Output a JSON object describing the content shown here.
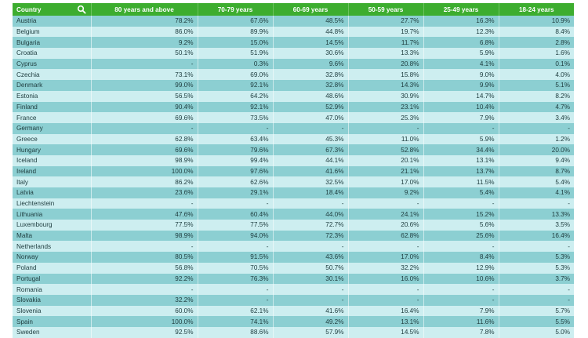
{
  "table": {
    "columns": [
      "Country",
      "80 years and above",
      "70-79 years",
      "60-69 years",
      "50-59 years",
      "25-49 years",
      "18-24 years"
    ],
    "rows": [
      [
        "Austria",
        "78.2%",
        "67.6%",
        "48.5%",
        "27.7%",
        "16.3%",
        "10.9%"
      ],
      [
        "Belgium",
        "86.0%",
        "89.9%",
        "44.8%",
        "19.7%",
        "12.3%",
        "8.4%"
      ],
      [
        "Bulgaria",
        "9.2%",
        "15.0%",
        "14.5%",
        "11.7%",
        "6.8%",
        "2.8%"
      ],
      [
        "Croatia",
        "50.1%",
        "51.9%",
        "30.6%",
        "13.3%",
        "5.9%",
        "1.6%"
      ],
      [
        "Cyprus",
        "-",
        "0.3%",
        "9.6%",
        "20.8%",
        "4.1%",
        "0.1%"
      ],
      [
        "Czechia",
        "73.1%",
        "69.0%",
        "32.8%",
        "15.8%",
        "9.0%",
        "4.0%"
      ],
      [
        "Denmark",
        "99.0%",
        "92.1%",
        "32.8%",
        "14.3%",
        "9.9%",
        "5.1%"
      ],
      [
        "Estonia",
        "56.5%",
        "64.2%",
        "48.6%",
        "30.9%",
        "14.7%",
        "8.2%"
      ],
      [
        "Finland",
        "90.4%",
        "92.1%",
        "52.9%",
        "23.1%",
        "10.4%",
        "4.7%"
      ],
      [
        "France",
        "69.6%",
        "73.5%",
        "47.0%",
        "25.3%",
        "7.9%",
        "3.4%"
      ],
      [
        "Germany",
        "-",
        "-",
        "-",
        "-",
        "-",
        "-"
      ],
      [
        "Greece",
        "62.8%",
        "63.4%",
        "45.3%",
        "11.0%",
        "5.9%",
        "1.2%"
      ],
      [
        "Hungary",
        "69.6%",
        "79.6%",
        "67.3%",
        "52.8%",
        "34.4%",
        "20.0%"
      ],
      [
        "Iceland",
        "98.9%",
        "99.4%",
        "44.1%",
        "20.1%",
        "13.1%",
        "9.4%"
      ],
      [
        "Ireland",
        "100.0%",
        "97.6%",
        "41.6%",
        "21.1%",
        "13.7%",
        "8.7%"
      ],
      [
        "Italy",
        "86.2%",
        "62.6%",
        "32.5%",
        "17.0%",
        "11.5%",
        "5.4%"
      ],
      [
        "Latvia",
        "23.6%",
        "29.1%",
        "18.4%",
        "9.2%",
        "5.4%",
        "4.1%"
      ],
      [
        "Liechtenstein",
        "-",
        "-",
        "-",
        "-",
        "-",
        "-"
      ],
      [
        "Lithuania",
        "47.6%",
        "60.4%",
        "44.0%",
        "24.1%",
        "15.2%",
        "13.3%"
      ],
      [
        "Luxembourg",
        "77.5%",
        "77.5%",
        "72.7%",
        "20.6%",
        "5.6%",
        "3.5%"
      ],
      [
        "Malta",
        "98.9%",
        "94.0%",
        "72.3%",
        "62.8%",
        "25.6%",
        "16.4%"
      ],
      [
        "Netherlands",
        "-",
        "-",
        "-",
        "-",
        "-",
        "-"
      ],
      [
        "Norway",
        "80.5%",
        "91.5%",
        "43.6%",
        "17.0%",
        "8.4%",
        "5.3%"
      ],
      [
        "Poland",
        "56.8%",
        "70.5%",
        "50.7%",
        "32.2%",
        "12.9%",
        "5.3%"
      ],
      [
        "Portugal",
        "92.2%",
        "76.3%",
        "30.1%",
        "16.0%",
        "10.6%",
        "3.7%"
      ],
      [
        "Romania",
        "-",
        "-",
        "-",
        "-",
        "-",
        "-"
      ],
      [
        "Slovakia",
        "32.2%",
        "-",
        "-",
        "-",
        "-",
        "-"
      ],
      [
        "Slovenia",
        "60.0%",
        "62.1%",
        "41.6%",
        "16.4%",
        "7.9%",
        "5.7%"
      ],
      [
        "Spain",
        "100.0%",
        "74.1%",
        "49.2%",
        "13.1%",
        "11.6%",
        "5.5%"
      ],
      [
        "Sweden",
        "92.5%",
        "88.6%",
        "57.9%",
        "14.5%",
        "7.8%",
        "5.0%"
      ]
    ]
  },
  "colors": {
    "header_bg": "#3dad2f",
    "row_dark": "#8ccfd2",
    "row_light": "#cdeef0"
  },
  "icons": {
    "search": "search-icon"
  }
}
